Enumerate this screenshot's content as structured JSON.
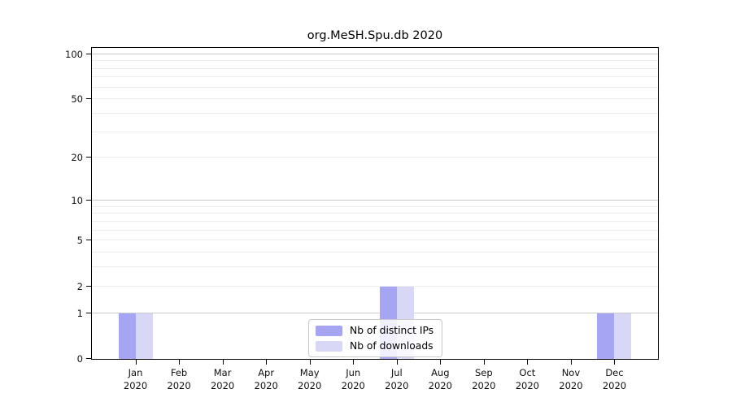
{
  "chart_data": {
    "type": "bar",
    "title": "org.MeSH.Spu.db 2020",
    "categories": [
      "Jan",
      "Feb",
      "Mar",
      "Apr",
      "May",
      "Jun",
      "Jul",
      "Aug",
      "Sep",
      "Oct",
      "Nov",
      "Dec"
    ],
    "category_year": "2020",
    "series": [
      {
        "name": "Nb of distinct IPs",
        "color": "#a5a5f3",
        "values": [
          1,
          0,
          0,
          0,
          0,
          0,
          2,
          0,
          0,
          0,
          0,
          1
        ]
      },
      {
        "name": "Nb of downloads",
        "color": "#d8d8f6",
        "values": [
          1,
          0,
          0,
          0,
          0,
          0,
          2,
          0,
          0,
          0,
          0,
          1
        ]
      }
    ],
    "xlabel": "",
    "ylabel": "",
    "yscale": "log1p",
    "ymax": 110,
    "yticks": [
      0,
      1,
      2,
      5,
      10,
      20,
      50,
      100
    ],
    "yticks_emphasized": [
      1,
      10,
      100
    ],
    "yticks_minor": [
      3,
      4,
      6,
      7,
      8,
      9,
      30,
      40,
      60,
      70,
      80,
      90
    ],
    "grid": "horizontal",
    "legend_position": "bottom-center",
    "colors": {
      "axis": "#000000",
      "grid_major": "#c9c9c9",
      "grid_minor": "#ededed",
      "text": "#111111"
    }
  }
}
